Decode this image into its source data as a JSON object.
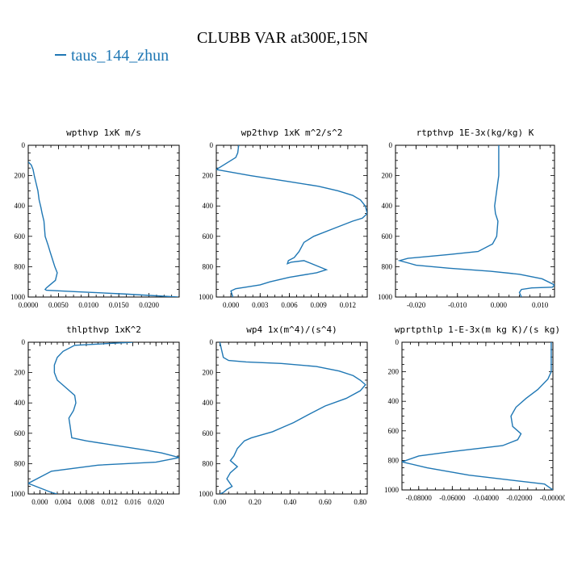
{
  "figure": {
    "title": "CLUBB VAR at300E,15N",
    "legend_label": "taus_144_zhun",
    "series_color": "#1f77b4"
  },
  "chart_data": [
    {
      "type": "line",
      "title": "wpthvp   1xK m/s",
      "xlim": [
        0.0,
        0.025
      ],
      "ylim": [
        1000,
        0
      ],
      "xticks": [
        0.0,
        0.005,
        0.01,
        0.015,
        0.02
      ],
      "xtick_labels": [
        "0.0000",
        "0.0050",
        "0.0100",
        "0.0150",
        "0.0200"
      ],
      "yticks": [
        0,
        200,
        400,
        600,
        800,
        1000
      ],
      "ytick_labels": [
        "0",
        "200",
        "400",
        "600",
        "800",
        "1000"
      ],
      "series": [
        {
          "x": [
            0.0,
            0.0005,
            0.0008,
            0.001,
            0.0013,
            0.0016,
            0.0018,
            0.0021,
            0.0023,
            0.0026,
            0.0028,
            0.0033,
            0.0036,
            0.004,
            0.0044,
            0.0048,
            0.0045,
            0.0036,
            0.003,
            0.0028,
            0.003,
            0.008,
            0.016,
            0.0248
          ],
          "y": [
            110,
            130,
            160,
            200,
            250,
            300,
            360,
            410,
            450,
            500,
            600,
            660,
            700,
            750,
            800,
            840,
            890,
            920,
            940,
            950,
            955,
            965,
            980,
            1000
          ]
        }
      ]
    },
    {
      "type": "line",
      "title": "wp2thvp   1xK m^2/s^2",
      "xlim": [
        -0.0015,
        0.014
      ],
      "ylim": [
        1000,
        0
      ],
      "xticks": [
        0.0,
        0.003,
        0.006,
        0.009,
        0.012
      ],
      "xtick_labels": [
        "0.000",
        "0.003",
        "0.006",
        "0.009",
        "0.012"
      ],
      "yticks": [
        0,
        200,
        400,
        600,
        800,
        1000
      ],
      "ytick_labels": [
        "0",
        "200",
        "400",
        "600",
        "800",
        "1000"
      ],
      "series": [
        {
          "x": [
            0.0008,
            0.0007,
            0.0005,
            0.0,
            -0.0015,
            0.002,
            0.006,
            0.009,
            0.011,
            0.0125,
            0.0133,
            0.0138,
            0.014,
            0.0135,
            0.0125,
            0.0105,
            0.0085,
            0.0075,
            0.007,
            0.0065,
            0.0059,
            0.0058,
            0.0062,
            0.0075,
            0.0098,
            0.0088,
            0.006,
            0.004,
            0.003,
            0.0015,
            0.0005,
            0.0,
            0.0002
          ],
          "y": [
            0,
            50,
            80,
            100,
            160,
            200,
            240,
            270,
            300,
            330,
            360,
            400,
            450,
            480,
            500,
            550,
            600,
            640,
            700,
            740,
            760,
            780,
            770,
            760,
            820,
            840,
            870,
            900,
            920,
            935,
            945,
            960,
            1000
          ]
        }
      ]
    },
    {
      "type": "line",
      "title": "rtpthvp   1E-3x(kg/kg) K",
      "xlim": [
        -0.025,
        0.0135
      ],
      "ylim": [
        1000,
        0
      ],
      "xticks": [
        -0.02,
        -0.01,
        0.0,
        0.01
      ],
      "xtick_labels": [
        "-0.020",
        "-0.010",
        "0.000",
        "0.010"
      ],
      "yticks": [
        0,
        200,
        400,
        600,
        800,
        1000
      ],
      "ytick_labels": [
        "0",
        "200",
        "400",
        "600",
        "800",
        "1000"
      ],
      "series": [
        {
          "x": [
            0.0,
            0.0,
            -0.0005,
            -0.001,
            -0.0008,
            -0.0002,
            -0.0005,
            -0.0015,
            -0.005,
            -0.012,
            -0.018,
            -0.022,
            -0.024,
            -0.02,
            -0.012,
            -0.002,
            0.005,
            0.0105,
            0.0135,
            0.013,
            0.008,
            0.0055,
            0.005,
            0.0055
          ],
          "y": [
            0,
            200,
            300,
            400,
            450,
            500,
            600,
            650,
            700,
            720,
            735,
            745,
            760,
            790,
            810,
            830,
            850,
            880,
            920,
            935,
            940,
            950,
            970,
            1000
          ]
        }
      ]
    },
    {
      "type": "line",
      "title": "thlpthvp   1xK^2",
      "xlim": [
        -0.002,
        0.024
      ],
      "ylim": [
        1000,
        0
      ],
      "xticks": [
        0.0,
        0.004,
        0.008,
        0.012,
        0.016,
        0.02
      ],
      "xtick_labels": [
        "0.000",
        "0.004",
        "0.008",
        "0.012",
        "0.016",
        "0.020"
      ],
      "yticks": [
        0,
        200,
        400,
        600,
        800,
        1000
      ],
      "ytick_labels": [
        "0",
        "200",
        "400",
        "600",
        "800",
        "1000"
      ],
      "series": [
        {
          "x": [
            0.016,
            0.006,
            0.004,
            0.003,
            0.0025,
            0.0025,
            0.003,
            0.0045,
            0.006,
            0.0062,
            0.0058,
            0.005,
            0.0052,
            0.0055,
            0.008,
            0.013,
            0.018,
            0.021,
            0.024,
            0.02,
            0.01,
            0.002,
            -0.002,
            0.0,
            0.002,
            0.003
          ],
          "y": [
            0,
            20,
            60,
            100,
            150,
            200,
            250,
            300,
            350,
            400,
            450,
            500,
            550,
            630,
            650,
            680,
            710,
            730,
            760,
            790,
            810,
            850,
            930,
            960,
            990,
            1000
          ]
        }
      ]
    },
    {
      "type": "line",
      "title": "wp4   1x(m^4)/(s^4)",
      "xlim": [
        -0.02,
        0.84
      ],
      "ylim": [
        1000,
        0
      ],
      "xticks": [
        0.0,
        0.2,
        0.4,
        0.6,
        0.8
      ],
      "xtick_labels": [
        "0.00",
        "0.20",
        "0.40",
        "0.60",
        "0.80"
      ],
      "yticks": [
        0,
        200,
        400,
        600,
        800,
        1000
      ],
      "ytick_labels": [
        "0",
        "200",
        "400",
        "600",
        "800",
        "1000"
      ],
      "series": [
        {
          "x": [
            0.0,
            0.02,
            0.05,
            0.15,
            0.35,
            0.55,
            0.68,
            0.76,
            0.8,
            0.83,
            0.8,
            0.72,
            0.6,
            0.5,
            0.42,
            0.36,
            0.3,
            0.24,
            0.18,
            0.14,
            0.1,
            0.08,
            0.06,
            0.1,
            0.06,
            0.04,
            0.07,
            0.04,
            0.02,
            0.0
          ],
          "y": [
            0,
            100,
            120,
            130,
            140,
            160,
            190,
            220,
            250,
            280,
            320,
            370,
            420,
            480,
            530,
            560,
            590,
            610,
            630,
            650,
            700,
            750,
            780,
            820,
            860,
            900,
            950,
            970,
            990,
            1000
          ]
        }
      ]
    },
    {
      "type": "line",
      "title": "wprtpthlp   1-E-3x(m kg K)/(s kg)",
      "xlim": [
        -0.09,
        0.0
      ],
      "ylim": [
        1000,
        0
      ],
      "xticks": [
        -0.08,
        -0.06,
        -0.04,
        -0.02,
        0.0
      ],
      "xtick_labels": [
        "-0.08000",
        "-0.06000",
        "-0.04000",
        "-0.02000",
        "-0.00000"
      ],
      "yticks": [
        0,
        200,
        400,
        600,
        800,
        1000
      ],
      "ytick_labels": [
        "0",
        "200",
        "400",
        "600",
        "800",
        "1000"
      ],
      "series": [
        {
          "x": [
            -0.001,
            -0.001,
            -0.003,
            -0.009,
            -0.016,
            -0.022,
            -0.025,
            -0.024,
            -0.019,
            -0.021,
            -0.03,
            -0.06,
            -0.08,
            -0.09,
            -0.075,
            -0.05,
            -0.02,
            -0.005,
            0.0
          ],
          "y": [
            0,
            200,
            250,
            320,
            380,
            440,
            500,
            570,
            620,
            660,
            700,
            740,
            770,
            810,
            850,
            900,
            940,
            960,
            1000
          ]
        }
      ]
    }
  ]
}
